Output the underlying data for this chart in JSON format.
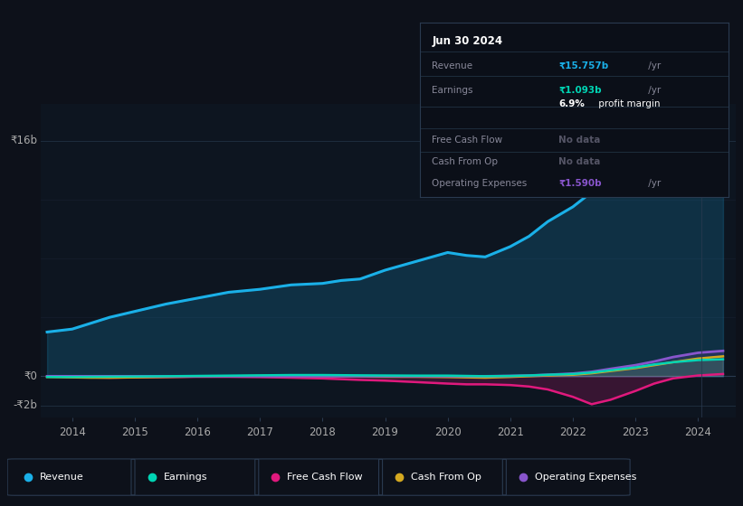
{
  "bg_color": "#0d111a",
  "chart_bg": "#0d1520",
  "grid_color": "#1a2535",
  "years": [
    2013.6,
    2014.0,
    2014.3,
    2014.6,
    2015.0,
    2015.5,
    2016.0,
    2016.5,
    2017.0,
    2017.5,
    2018.0,
    2018.3,
    2018.6,
    2019.0,
    2019.5,
    2020.0,
    2020.3,
    2020.6,
    2021.0,
    2021.3,
    2021.6,
    2022.0,
    2022.3,
    2022.6,
    2023.0,
    2023.3,
    2023.6,
    2024.0,
    2024.4
  ],
  "revenue": [
    3.0,
    3.2,
    3.6,
    4.0,
    4.4,
    4.9,
    5.3,
    5.7,
    5.9,
    6.2,
    6.3,
    6.5,
    6.6,
    7.2,
    7.8,
    8.4,
    8.2,
    8.1,
    8.8,
    9.5,
    10.5,
    11.5,
    12.5,
    13.5,
    14.5,
    15.0,
    15.2,
    15.757,
    15.9
  ],
  "earnings": [
    -0.05,
    -0.05,
    -0.04,
    -0.03,
    -0.02,
    0.0,
    0.02,
    0.04,
    0.06,
    0.08,
    0.08,
    0.07,
    0.06,
    0.05,
    0.04,
    0.04,
    0.02,
    0.0,
    0.02,
    0.05,
    0.1,
    0.15,
    0.25,
    0.4,
    0.6,
    0.8,
    0.95,
    1.093,
    1.15
  ],
  "free_cash_flow": [
    0.0,
    -0.05,
    -0.08,
    -0.1,
    -0.08,
    -0.06,
    -0.04,
    -0.04,
    -0.06,
    -0.1,
    -0.15,
    -0.2,
    -0.25,
    -0.3,
    -0.4,
    -0.5,
    -0.55,
    -0.55,
    -0.6,
    -0.7,
    -0.9,
    -1.4,
    -1.9,
    -1.6,
    -1.0,
    -0.5,
    -0.15,
    0.05,
    0.15
  ],
  "cash_from_op": [
    -0.05,
    -0.08,
    -0.1,
    -0.1,
    -0.08,
    -0.05,
    -0.02,
    0.0,
    0.02,
    0.02,
    0.0,
    0.0,
    -0.02,
    -0.04,
    -0.04,
    -0.06,
    -0.08,
    -0.1,
    -0.05,
    0.0,
    0.05,
    0.1,
    0.2,
    0.35,
    0.55,
    0.75,
    0.95,
    1.2,
    1.35
  ],
  "operating_expenses": [
    0.0,
    0.0,
    0.0,
    0.0,
    0.0,
    0.0,
    0.0,
    0.0,
    0.0,
    0.0,
    0.0,
    0.0,
    0.0,
    0.0,
    0.0,
    0.0,
    0.0,
    0.0,
    0.02,
    0.05,
    0.1,
    0.18,
    0.3,
    0.5,
    0.75,
    1.0,
    1.3,
    1.59,
    1.72
  ],
  "revenue_color": "#1ab0e8",
  "earnings_color": "#00d4b4",
  "fcf_color": "#e0197d",
  "cash_op_color": "#d4a820",
  "opex_color": "#8855cc",
  "ylim_min": -2.8,
  "ylim_max": 18.5,
  "xlim_min": 2013.5,
  "xlim_max": 2024.6,
  "xtick_years": [
    2014,
    2015,
    2016,
    2017,
    2018,
    2019,
    2020,
    2021,
    2022,
    2023,
    2024
  ],
  "legend_labels": [
    "Revenue",
    "Earnings",
    "Free Cash Flow",
    "Cash From Op",
    "Operating Expenses"
  ],
  "tooltip": {
    "date": "Jun 30 2024",
    "revenue_label": "Revenue",
    "revenue_val": "₹15.757b",
    "revenue_unit": " /yr",
    "earnings_label": "Earnings",
    "earnings_val": "₹1.093b",
    "earnings_unit": " /yr",
    "margin_val": "6.9%",
    "margin_text": " profit margin",
    "fcf_label": "Free Cash Flow",
    "fcf_val": "No data",
    "cashop_label": "Cash From Op",
    "cashop_val": "No data",
    "opex_label": "Operating Expenses",
    "opex_val": "₹1.590b",
    "opex_unit": " /yr"
  }
}
